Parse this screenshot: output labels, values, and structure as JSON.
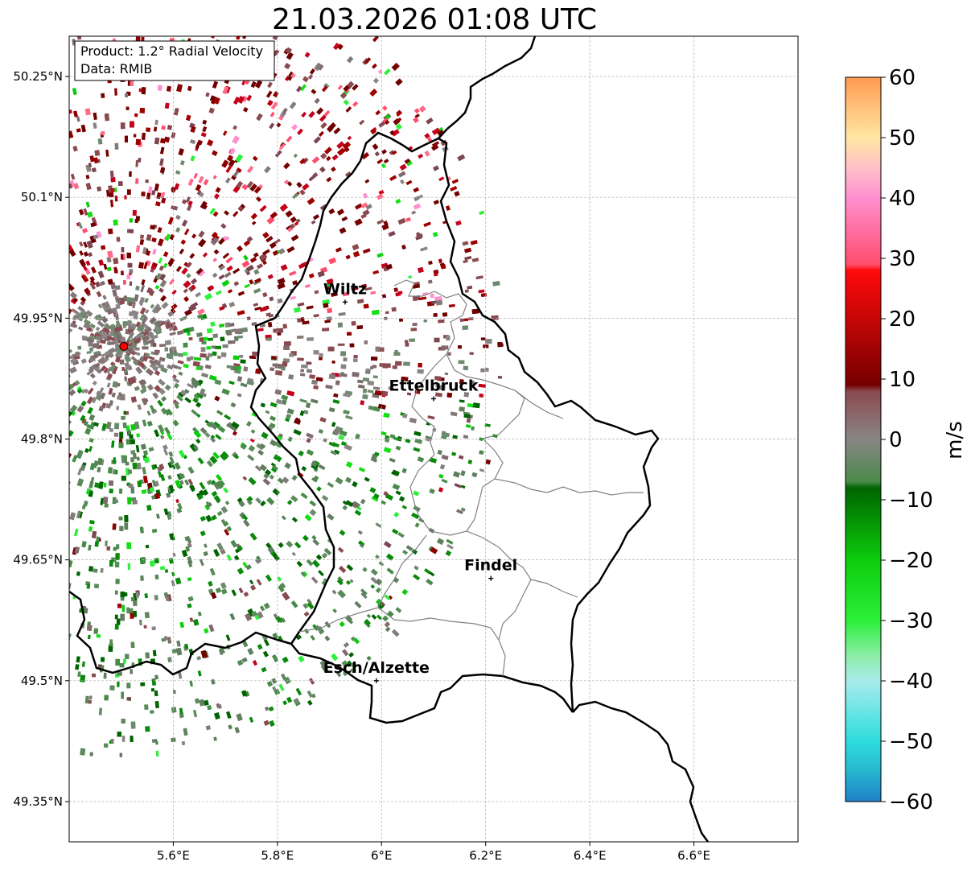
{
  "title": "21.03.2026 01:08 UTC",
  "info_box": {
    "product": "Product: 1.2° Radial Velocity",
    "data": "Data: RMIB"
  },
  "map": {
    "lon_range": [
      5.4,
      6.8
    ],
    "lat_range": [
      49.3,
      50.3
    ],
    "lon_ticks": [
      "5.6°E",
      "5.8°E",
      "6°E",
      "6.2°E",
      "6.4°E",
      "6.6°E"
    ],
    "lon_tick_values": [
      5.6,
      5.8,
      6.0,
      6.2,
      6.4,
      6.6
    ],
    "lat_ticks": [
      "50.25°N",
      "50.1°N",
      "49.95°N",
      "49.8°N",
      "49.65°N",
      "49.5°N",
      "49.35°N"
    ],
    "lat_tick_values": [
      50.25,
      50.1,
      49.95,
      49.8,
      49.65,
      49.5,
      49.35
    ],
    "radar_site": {
      "lon": 5.505,
      "lat": 49.915
    },
    "cities": [
      {
        "name": "Wiltz",
        "label": "Wiltz",
        "lon": 5.93,
        "lat": 49.97
      },
      {
        "name": "Ettelbruck",
        "label": "Ettelbruck",
        "lon": 6.1,
        "lat": 49.85
      },
      {
        "name": "Findel",
        "label": "Findel",
        "lon": 6.21,
        "lat": 49.627
      },
      {
        "name": "Esch/Alzette",
        "label": "Esch/Alzette",
        "lon": 5.99,
        "lat": 49.5
      }
    ]
  },
  "colorbar": {
    "unit": "m/s",
    "min": -60,
    "max": 60,
    "tick_labels": [
      "60",
      "50",
      "40",
      "30",
      "20",
      "10",
      "0",
      "−10",
      "−20",
      "−30",
      "−40",
      "−50",
      "−60"
    ],
    "tick_values": [
      60,
      50,
      40,
      30,
      20,
      10,
      0,
      -10,
      -20,
      -30,
      -40,
      -50,
      -60
    ],
    "stops": [
      {
        "v": -60,
        "c": "#1f7fc7"
      },
      {
        "v": -55,
        "c": "#28b6d0"
      },
      {
        "v": -50,
        "c": "#2ddcdc"
      },
      {
        "v": -40,
        "c": "#a8ecec"
      },
      {
        "v": -36,
        "c": "#8eedaa"
      },
      {
        "v": -30,
        "c": "#2cf03a"
      },
      {
        "v": -20,
        "c": "#0ccc0c"
      },
      {
        "v": -8,
        "c": "#006400"
      },
      {
        "v": -7,
        "c": "#4a8a4a"
      },
      {
        "v": 0,
        "c": "#8a8585"
      },
      {
        "v": 8,
        "c": "#8a4a4f"
      },
      {
        "v": 9,
        "c": "#760000"
      },
      {
        "v": 28,
        "c": "#ff0a0a"
      },
      {
        "v": 29,
        "c": "#ff4d6d"
      },
      {
        "v": 40,
        "c": "#ff8fcf"
      },
      {
        "v": 45,
        "c": "#ffc0c8"
      },
      {
        "v": 50,
        "c": "#ffe7a3"
      },
      {
        "v": 60,
        "c": "#ff9a50"
      }
    ]
  },
  "colors": {
    "frame": "#000000",
    "grid": "#b0b0b0",
    "country_border": "#000000",
    "canton_border": "#808080",
    "radar_marker": "#ff0000"
  }
}
